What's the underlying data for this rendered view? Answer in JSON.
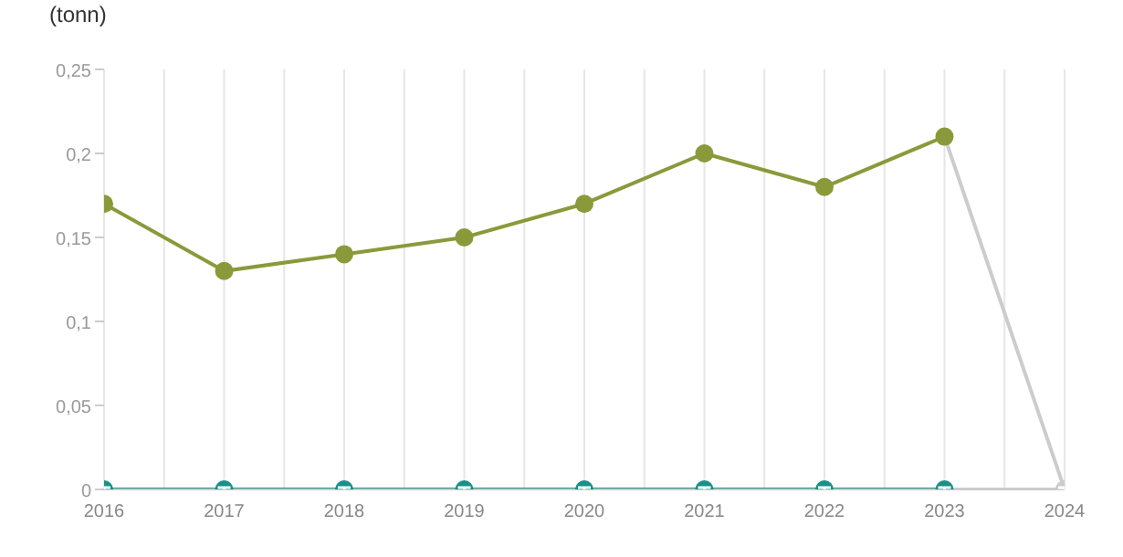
{
  "chart_data": {
    "type": "line",
    "ylabel": "(tonn)",
    "categories": [
      "2016",
      "2017",
      "2018",
      "2019",
      "2020",
      "2021",
      "2022",
      "2023",
      "2024"
    ],
    "series": [
      {
        "color": "#8a9a3b",
        "colors": [
          "#8a9a3b",
          "#8a9a3b",
          "#8a9a3b",
          "#8a9a3b",
          "#8a9a3b",
          "#8a9a3b",
          "#8a9a3b",
          "#8a9a3b",
          "#cccccc"
        ],
        "values": [
          0.17,
          0.13,
          0.14,
          0.15,
          0.17,
          0.2,
          0.18,
          0.21,
          0
        ]
      },
      {
        "color": "#1a9088",
        "colors": [
          "#1a9088",
          "#1a9088",
          "#1a9088",
          "#1a9088",
          "#1a9088",
          "#1a9088",
          "#1a9088",
          "#1a9088",
          "#cccccc"
        ],
        "values": [
          0,
          0,
          0,
          0,
          0,
          0,
          0,
          0,
          0
        ]
      }
    ],
    "ylim": [
      0,
      0.25
    ],
    "yticks": [
      0,
      {
        "value": 0.05,
        "label": "0,05"
      },
      {
        "value": 0.1,
        "label": "0,1"
      },
      {
        "value": 0.15,
        "label": "0,15"
      },
      {
        "value": 0.2,
        "label": "0,2"
      },
      {
        "value": 0.25,
        "label": "0,25"
      }
    ],
    "grid": "x",
    "marker": "circle",
    "legend": false
  }
}
